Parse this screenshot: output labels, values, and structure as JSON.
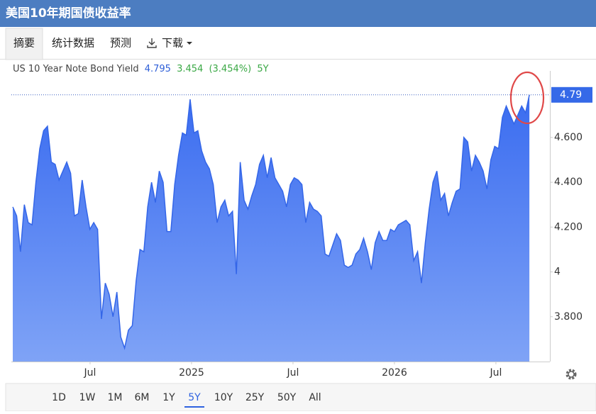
{
  "header": {
    "title": "美国10年期国债收益率"
  },
  "tabs": [
    "摘要",
    "统计数据",
    "预测",
    "下载"
  ],
  "selected_tab": 0,
  "ranges": [
    "1D",
    "1W",
    "1M",
    "6M",
    "1Y",
    "5Y",
    "10Y",
    "25Y",
    "50Y",
    "All"
  ],
  "selected_range": 5,
  "chart_data": {
    "type": "area",
    "legend": {
      "last": 4.795,
      "change": 3.454,
      "change_percent": "(3.454%)",
      "period": "5Y"
    },
    "x": [
      2024.119,
      2024.138,
      2024.157,
      2024.176,
      2024.195,
      2024.214,
      2024.233,
      2024.252,
      2024.271,
      2024.29,
      2024.309,
      2024.328,
      2024.347,
      2024.366,
      2024.385,
      2024.404,
      2024.423,
      2024.442,
      2024.461,
      2024.48,
      2024.499,
      2024.518,
      2024.537,
      2024.556,
      2024.575,
      2024.594,
      2024.613,
      2024.632,
      2024.651,
      2024.67,
      2024.689,
      2024.708,
      2024.727,
      2024.746,
      2024.765,
      2024.784,
      2024.803,
      2024.822,
      2024.841,
      2024.86,
      2024.879,
      2024.898,
      2024.917,
      2024.936,
      2024.955,
      2024.974,
      2024.993,
      2025.012,
      2025.031,
      2025.05,
      2025.069,
      2025.088,
      2025.107,
      2025.126,
      2025.145,
      2025.164,
      2025.183,
      2025.202,
      2025.221,
      2025.24,
      2025.259,
      2025.278,
      2025.297,
      2025.316,
      2025.335,
      2025.354,
      2025.373,
      2025.392,
      2025.411,
      2025.43,
      2025.449,
      2025.468,
      2025.487,
      2025.506,
      2025.525,
      2025.544,
      2025.563,
      2025.582,
      2025.601,
      2025.62,
      2025.639,
      2025.658,
      2025.677,
      2025.696,
      2025.715,
      2025.734,
      2025.753,
      2025.772,
      2025.791,
      2025.81,
      2025.829,
      2025.848,
      2025.867,
      2025.886,
      2025.905,
      2025.924,
      2025.943,
      2025.962,
      2025.981,
      2026.0,
      2026.019,
      2026.038,
      2026.057,
      2026.076,
      2026.095,
      2026.114,
      2026.133,
      2026.152,
      2026.171,
      2026.19,
      2026.209,
      2026.228,
      2026.247,
      2026.266,
      2026.285,
      2026.304,
      2026.323,
      2026.342,
      2026.361,
      2026.38,
      2026.399,
      2026.418,
      2026.437,
      2026.456,
      2026.475,
      2026.494,
      2026.513,
      2026.532,
      2026.551,
      2026.57,
      2026.589,
      2026.608,
      2026.627,
      2026.646,
      2026.665
    ],
    "series": [
      {
        "name": "US 10 Year Note Bond Yield",
        "color": "#3466e8",
        "values": [
          4.29,
          4.25,
          4.09,
          4.3,
          4.22,
          4.21,
          4.4,
          4.55,
          4.63,
          4.65,
          4.49,
          4.48,
          4.41,
          4.45,
          4.49,
          4.44,
          4.25,
          4.26,
          4.41,
          4.29,
          4.19,
          4.22,
          4.19,
          3.79,
          3.95,
          3.9,
          3.8,
          3.91,
          3.71,
          3.66,
          3.74,
          3.76,
          3.96,
          4.1,
          4.09,
          4.29,
          4.4,
          4.31,
          4.45,
          4.4,
          4.18,
          4.18,
          4.39,
          4.52,
          4.62,
          4.61,
          4.77,
          4.62,
          4.63,
          4.54,
          4.49,
          4.46,
          4.39,
          4.22,
          4.29,
          4.32,
          4.25,
          4.27,
          3.99,
          4.49,
          4.32,
          4.28,
          4.34,
          4.39,
          4.48,
          4.52,
          4.42,
          4.51,
          4.42,
          4.39,
          4.36,
          4.29,
          4.39,
          4.42,
          4.41,
          4.39,
          4.22,
          4.31,
          4.28,
          4.27,
          4.25,
          4.08,
          4.07,
          4.12,
          4.17,
          4.14,
          4.03,
          4.02,
          4.03,
          4.08,
          4.1,
          4.15,
          4.09,
          4.01,
          4.13,
          4.18,
          4.14,
          4.14,
          4.19,
          4.18,
          4.21,
          4.22,
          4.23,
          4.21,
          4.05,
          4.09,
          3.95,
          4.13,
          4.28,
          4.4,
          4.45,
          4.32,
          4.35,
          4.25,
          4.31,
          4.36,
          4.37,
          4.6,
          4.58,
          4.45,
          4.52,
          4.49,
          4.45,
          4.37,
          4.5,
          4.56,
          4.55,
          4.69,
          4.74,
          4.7,
          4.66,
          4.7,
          4.74,
          4.71,
          4.79
        ]
      }
    ],
    "xlim": [
      2024.112,
      2026.766
    ],
    "xticks": [
      {
        "value": 2024.5,
        "label": "Jul"
      },
      2025,
      {
        "value": 2025.5,
        "label": "Jul"
      },
      2026,
      {
        "value": 2026.5,
        "label": "Jul"
      }
    ],
    "ylim": [
      3.6,
      4.84
    ],
    "yticks": [
      {
        "value": 3.8,
        "label": "3.800"
      },
      4,
      {
        "value": 4.2,
        "label": "4.200"
      },
      {
        "value": 4.4,
        "label": "4.400"
      },
      {
        "value": 4.6,
        "label": "4.600"
      }
    ],
    "grid": false,
    "last_value": {
      "value": 4.79,
      "label": "4.79"
    }
  }
}
